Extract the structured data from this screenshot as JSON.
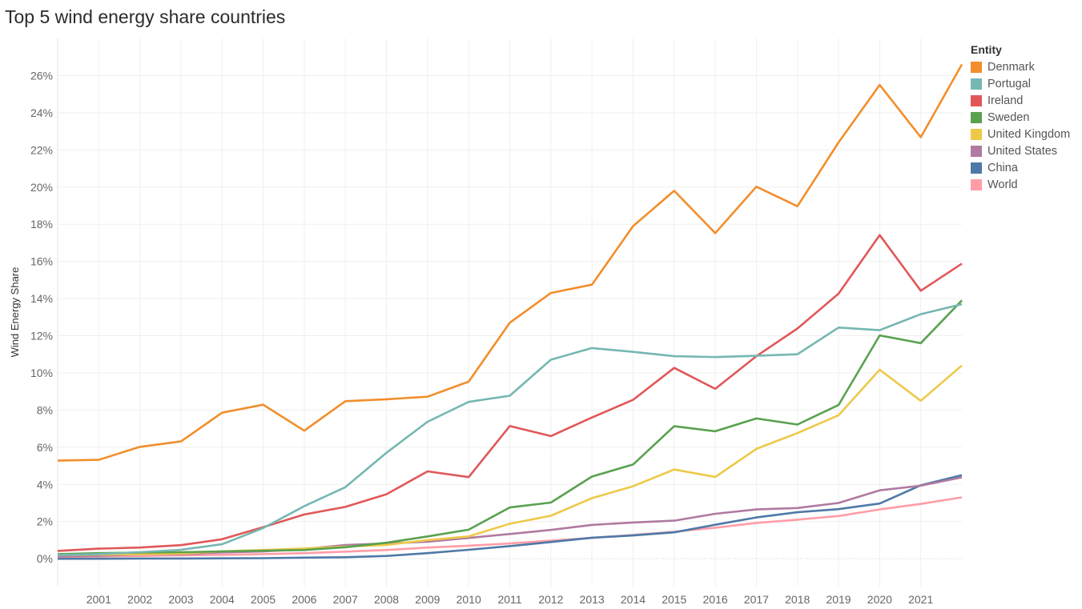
{
  "title": "Top 5 wind energy share countries",
  "legend_title": "Entity",
  "chart_data": {
    "type": "line",
    "title": "Top 5 wind energy share countries",
    "xlabel": "",
    "ylabel": "Wind Energy Share",
    "xlim": [
      2000,
      2022
    ],
    "ylim": [
      -1.5,
      28
    ],
    "x_ticks": [
      2001,
      2002,
      2003,
      2004,
      2005,
      2006,
      2007,
      2008,
      2009,
      2010,
      2011,
      2012,
      2013,
      2014,
      2015,
      2016,
      2017,
      2018,
      2019,
      2020,
      2021
    ],
    "y_ticks": [
      0,
      2,
      4,
      6,
      8,
      10,
      12,
      14,
      16,
      18,
      20,
      22,
      24,
      26
    ],
    "y_tick_format": "percent",
    "grid": true,
    "legend_position": "right",
    "x": [
      2000,
      2001,
      2002,
      2003,
      2004,
      2005,
      2006,
      2007,
      2008,
      2009,
      2010,
      2011,
      2012,
      2013,
      2014,
      2015,
      2016,
      2017,
      2018,
      2019,
      2020,
      2021,
      2022
    ],
    "series": [
      {
        "name": "World",
        "color": "#ff9da7",
        "values": [
          0.1,
          0.12,
          0.15,
          0.18,
          0.21,
          0.25,
          0.3,
          0.38,
          0.47,
          0.6,
          0.7,
          0.82,
          0.97,
          1.12,
          1.28,
          1.45,
          1.67,
          1.93,
          2.1,
          2.3,
          2.65,
          2.95,
          3.3
        ]
      },
      {
        "name": "China",
        "color": "#4e79a7",
        "values": [
          0.0,
          0.0,
          0.01,
          0.01,
          0.02,
          0.03,
          0.06,
          0.08,
          0.15,
          0.3,
          0.48,
          0.68,
          0.9,
          1.13,
          1.25,
          1.42,
          1.83,
          2.22,
          2.5,
          2.67,
          2.97,
          3.95,
          4.5
        ]
      },
      {
        "name": "United States",
        "color": "#b07aa1",
        "values": [
          0.14,
          0.15,
          0.25,
          0.25,
          0.34,
          0.39,
          0.52,
          0.74,
          0.82,
          0.91,
          1.12,
          1.33,
          1.55,
          1.82,
          1.95,
          2.05,
          2.42,
          2.65,
          2.73,
          3.0,
          3.68,
          3.93,
          4.38
        ]
      },
      {
        "name": "United Kingdom",
        "color": "#edc948",
        "values": [
          0.2,
          0.22,
          0.25,
          0.28,
          0.4,
          0.47,
          0.55,
          0.65,
          0.74,
          1.0,
          1.2,
          1.88,
          2.31,
          3.26,
          3.9,
          4.8,
          4.4,
          5.91,
          6.76,
          7.72,
          10.17,
          8.5,
          10.4
        ]
      },
      {
        "name": "Sweden",
        "color": "#59a14f",
        "values": [
          0.25,
          0.3,
          0.33,
          0.35,
          0.39,
          0.43,
          0.47,
          0.62,
          0.86,
          1.2,
          1.56,
          2.76,
          3.02,
          4.42,
          5.07,
          7.13,
          6.86,
          7.55,
          7.22,
          8.27,
          12.02,
          11.6,
          13.9
        ]
      },
      {
        "name": "Ireland",
        "color": "#e15759",
        "values": [
          0.42,
          0.54,
          0.6,
          0.73,
          1.05,
          1.7,
          2.38,
          2.79,
          3.47,
          4.7,
          4.39,
          7.14,
          6.6,
          7.6,
          8.55,
          10.27,
          9.14,
          10.9,
          12.39,
          14.26,
          17.42,
          14.42,
          15.88
        ]
      },
      {
        "name": "Portugal",
        "color": "#76b7b2",
        "values": [
          0.2,
          0.25,
          0.35,
          0.48,
          0.78,
          1.65,
          2.83,
          3.85,
          5.7,
          7.37,
          8.44,
          8.77,
          10.71,
          11.34,
          11.13,
          10.9,
          10.85,
          10.92,
          11.0,
          12.44,
          12.3,
          13.16,
          13.7
        ]
      },
      {
        "name": "Denmark",
        "color": "#f28e2b",
        "values": [
          5.28,
          5.32,
          6.02,
          6.31,
          7.86,
          8.29,
          6.89,
          8.48,
          8.58,
          8.72,
          9.53,
          12.7,
          14.3,
          14.75,
          17.9,
          19.8,
          17.52,
          20.02,
          18.97,
          22.4,
          25.5,
          22.68,
          26.6
        ]
      }
    ]
  },
  "legend_order": [
    "Denmark",
    "Portugal",
    "Ireland",
    "Sweden",
    "United Kingdom",
    "United States",
    "China",
    "World"
  ]
}
